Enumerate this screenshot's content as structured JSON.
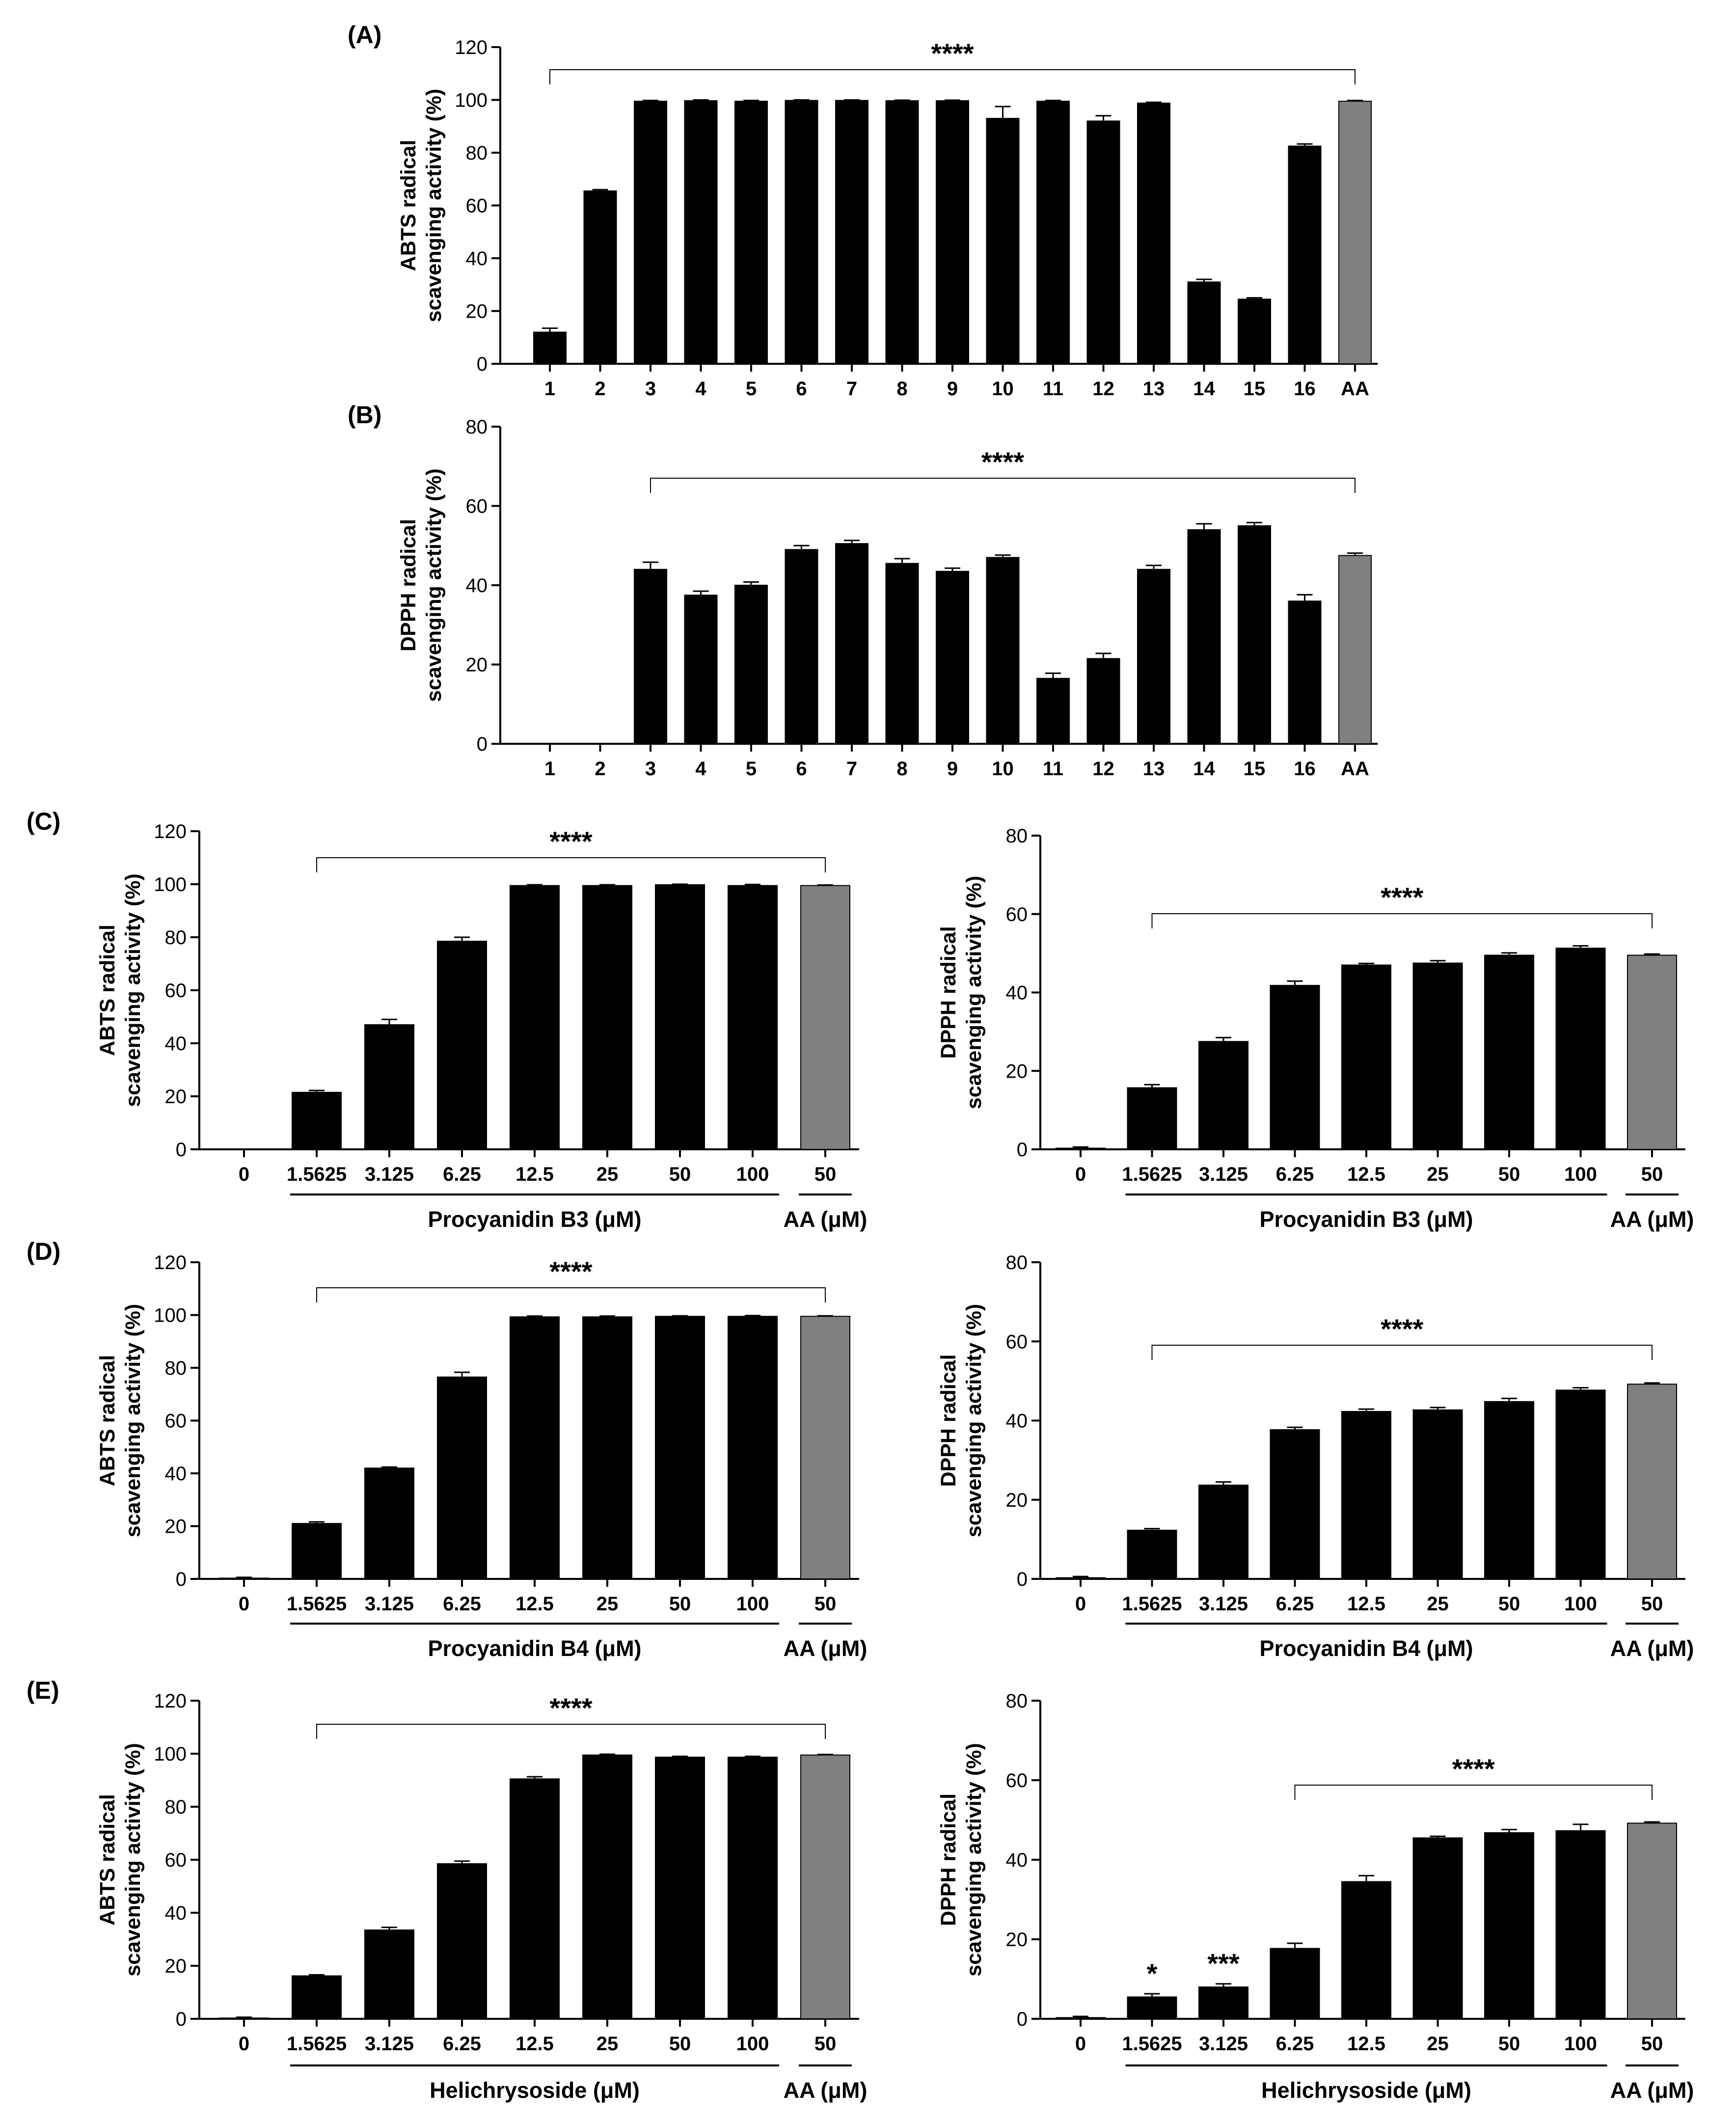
{
  "chart_data": [
    {
      "id": "A",
      "panel_label": "(A)",
      "type": "bar",
      "ylabel": [
        "ABTS radical",
        "scavenging activity (%)"
      ],
      "ylim": [
        0,
        120
      ],
      "yticks": [
        0,
        20,
        40,
        60,
        80,
        100,
        120
      ],
      "categories": [
        "1",
        "2",
        "3",
        "4",
        "5",
        "6",
        "7",
        "8",
        "9",
        "10",
        "11",
        "12",
        "13",
        "14",
        "15",
        "16",
        "AA"
      ],
      "values": [
        12,
        65.5,
        99.5,
        99.7,
        99.5,
        99.8,
        99.8,
        99.7,
        99.7,
        93,
        99.5,
        92,
        98.8,
        31,
        24.5,
        82.5,
        99.5
      ],
      "errors": [
        1.5,
        0.5,
        0.3,
        0.3,
        0.3,
        0.2,
        0.2,
        0.2,
        0.2,
        4.5,
        0.3,
        2.0,
        0.3,
        1.0,
        0.5,
        0.8,
        0.3
      ],
      "colors": [
        "#000000",
        "#000000",
        "#000000",
        "#000000",
        "#000000",
        "#000000",
        "#000000",
        "#000000",
        "#000000",
        "#000000",
        "#000000",
        "#000000",
        "#000000",
        "#000000",
        "#000000",
        "#000000",
        "#808080"
      ],
      "significance": [
        {
          "label": "****",
          "from": 0,
          "to": 16
        }
      ]
    },
    {
      "id": "B",
      "panel_label": "(B)",
      "type": "bar",
      "ylabel": [
        "DPPH radical",
        "scavenging activity (%)"
      ],
      "ylim": [
        0,
        80
      ],
      "yticks": [
        0,
        20,
        40,
        60,
        80
      ],
      "categories": [
        "1",
        "2",
        "3",
        "4",
        "5",
        "6",
        "7",
        "8",
        "9",
        "10",
        "11",
        "12",
        "13",
        "14",
        "15",
        "16",
        "AA"
      ],
      "values": [
        0,
        0,
        44,
        37.5,
        40,
        49,
        50.5,
        45.5,
        43.5,
        47,
        16.5,
        21.5,
        44,
        54,
        55,
        36,
        47.5
      ],
      "errors": [
        0,
        0,
        1.8,
        1.0,
        0.8,
        1.0,
        0.8,
        1.2,
        0.8,
        0.6,
        1.3,
        1.3,
        1.0,
        1.5,
        0.8,
        1.6,
        0.6
      ],
      "colors": [
        "#000000",
        "#000000",
        "#000000",
        "#000000",
        "#000000",
        "#000000",
        "#000000",
        "#000000",
        "#000000",
        "#000000",
        "#000000",
        "#000000",
        "#000000",
        "#000000",
        "#000000",
        "#000000",
        "#808080"
      ],
      "significance": [
        {
          "label": "****",
          "from": 2,
          "to": 16
        }
      ]
    },
    {
      "id": "C1",
      "panel_label": "(C)",
      "type": "bar",
      "ylabel": [
        "ABTS radical",
        "scavenging activity (%)"
      ],
      "ylim": [
        0,
        120
      ],
      "yticks": [
        0,
        20,
        40,
        60,
        80,
        100,
        120
      ],
      "categories": [
        "0",
        "1.5625",
        "3.125",
        "6.25",
        "12.5",
        "25",
        "50",
        "100",
        "50"
      ],
      "values": [
        0,
        21.5,
        47,
        78.5,
        99.5,
        99.5,
        99.8,
        99.5,
        99.5
      ],
      "errors": [
        0,
        0.7,
        2.0,
        1.5,
        0.3,
        0.3,
        0.2,
        0.4,
        0.2
      ],
      "colors": [
        "#000000",
        "#000000",
        "#000000",
        "#000000",
        "#000000",
        "#000000",
        "#000000",
        "#000000",
        "#808080"
      ],
      "significance": [
        {
          "label": "****",
          "from": 1,
          "to": 8
        }
      ],
      "groups": [
        {
          "label": "Procyanidin B3 (μM)",
          "from": 1,
          "to": 7
        },
        {
          "label": "AA (μM)",
          "from": 8,
          "to": 8
        }
      ]
    },
    {
      "id": "C2",
      "panel_label": "",
      "type": "bar",
      "ylabel": [
        "DPPH radical",
        "scavenging activity (%)"
      ],
      "ylim": [
        0,
        80
      ],
      "yticks": [
        0,
        20,
        40,
        60,
        80
      ],
      "categories": [
        "0",
        "1.5625",
        "3.125",
        "6.25",
        "12.5",
        "25",
        "50",
        "100",
        "50"
      ],
      "values": [
        0.3,
        15.7,
        27.5,
        41.8,
        47.0,
        47.5,
        49.5,
        51.3,
        49.5
      ],
      "errors": [
        0.3,
        0.8,
        1.0,
        1.1,
        0.4,
        0.6,
        0.6,
        0.6,
        0.3
      ],
      "colors": [
        "#000000",
        "#000000",
        "#000000",
        "#000000",
        "#000000",
        "#000000",
        "#000000",
        "#000000",
        "#808080"
      ],
      "significance": [
        {
          "label": "****",
          "from": 1,
          "to": 8
        }
      ],
      "groups": [
        {
          "label": "Procyanidin B3 (μM)",
          "from": 1,
          "to": 7
        },
        {
          "label": "AA (μM)",
          "from": 8,
          "to": 8
        }
      ]
    },
    {
      "id": "D1",
      "panel_label": "(D)",
      "type": "bar",
      "ylabel": [
        "ABTS radical",
        "scavenging activity (%)"
      ],
      "ylim": [
        0,
        120
      ],
      "yticks": [
        0,
        20,
        40,
        60,
        80,
        100,
        120
      ],
      "categories": [
        "0",
        "1.5625",
        "3.125",
        "6.25",
        "12.5",
        "25",
        "50",
        "100",
        "50"
      ],
      "values": [
        0.3,
        21,
        42,
        76.5,
        99.3,
        99.3,
        99.5,
        99.5,
        99.5
      ],
      "errors": [
        0.3,
        0.6,
        0.4,
        1.8,
        0.3,
        0.3,
        0.2,
        0.3,
        0.2
      ],
      "colors": [
        "#000000",
        "#000000",
        "#000000",
        "#000000",
        "#000000",
        "#000000",
        "#000000",
        "#000000",
        "#808080"
      ],
      "significance": [
        {
          "label": "****",
          "from": 1,
          "to": 8
        }
      ],
      "groups": [
        {
          "label": "Procyanidin B4 (μM)",
          "from": 1,
          "to": 7
        },
        {
          "label": "AA (μM)",
          "from": 8,
          "to": 8
        }
      ]
    },
    {
      "id": "D2",
      "panel_label": "",
      "type": "bar",
      "ylabel": [
        "DPPH radical",
        "scavenging activity (%)"
      ],
      "ylim": [
        0,
        80
      ],
      "yticks": [
        0,
        20,
        40,
        60,
        80
      ],
      "categories": [
        "0",
        "1.5625",
        "3.125",
        "6.25",
        "12.5",
        "25",
        "50",
        "100",
        "50"
      ],
      "values": [
        0.3,
        12.3,
        23.7,
        37.7,
        42.3,
        42.7,
        44.8,
        47.7,
        49.2
      ],
      "errors": [
        0.3,
        0.4,
        0.8,
        0.6,
        0.6,
        0.6,
        0.8,
        0.6,
        0.3
      ],
      "colors": [
        "#000000",
        "#000000",
        "#000000",
        "#000000",
        "#000000",
        "#000000",
        "#000000",
        "#000000",
        "#808080"
      ],
      "significance": [
        {
          "label": "****",
          "from": 1,
          "to": 8
        }
      ],
      "groups": [
        {
          "label": "Procyanidin B4 (μM)",
          "from": 1,
          "to": 7
        },
        {
          "label": "AA (μM)",
          "from": 8,
          "to": 8
        }
      ]
    },
    {
      "id": "E1",
      "panel_label": "(E)",
      "type": "bar",
      "ylabel": [
        "ABTS radical",
        "scavenging activity (%)"
      ],
      "ylim": [
        0,
        120
      ],
      "yticks": [
        0,
        20,
        40,
        60,
        80,
        100,
        120
      ],
      "categories": [
        "0",
        "1.5625",
        "3.125",
        "6.25",
        "12.5",
        "25",
        "50",
        "100",
        "50"
      ],
      "values": [
        0.3,
        16.2,
        33.5,
        58.5,
        90.5,
        99.5,
        98.7,
        98.7,
        99.5
      ],
      "errors": [
        0.3,
        0.4,
        1.0,
        1.0,
        0.8,
        0.3,
        0.3,
        0.3,
        0.2
      ],
      "colors": [
        "#000000",
        "#000000",
        "#000000",
        "#000000",
        "#000000",
        "#000000",
        "#000000",
        "#000000",
        "#808080"
      ],
      "significance": [
        {
          "label": "****",
          "from": 1,
          "to": 8
        }
      ],
      "groups": [
        {
          "label": "Helichrysoside (μM)",
          "from": 1,
          "to": 7
        },
        {
          "label": "AA (μM)",
          "from": 8,
          "to": 8
        }
      ]
    },
    {
      "id": "E2",
      "panel_label": "",
      "type": "bar",
      "ylabel": [
        "DPPH radical",
        "scavenging activity (%)"
      ],
      "ylim": [
        0,
        80
      ],
      "yticks": [
        0,
        20,
        40,
        60,
        80
      ],
      "categories": [
        "0",
        "1.5625",
        "3.125",
        "6.25",
        "12.5",
        "25",
        "50",
        "100",
        "50"
      ],
      "values": [
        0.3,
        5.5,
        8.0,
        17.7,
        34.5,
        45.5,
        46.8,
        47.3,
        49.2
      ],
      "errors": [
        0.3,
        0.8,
        0.8,
        1.3,
        1.5,
        0.4,
        0.8,
        1.6,
        0.3
      ],
      "colors": [
        "#000000",
        "#000000",
        "#000000",
        "#000000",
        "#000000",
        "#000000",
        "#000000",
        "#000000",
        "#808080"
      ],
      "significance": [
        {
          "label": "****",
          "from": 3,
          "to": 8
        },
        {
          "label": "*",
          "from": 1,
          "to": 1
        },
        {
          "label": "***",
          "from": 2,
          "to": 2
        }
      ],
      "groups": [
        {
          "label": "Helichrysoside (μM)",
          "from": 1,
          "to": 7
        },
        {
          "label": "AA (μM)",
          "from": 8,
          "to": 8
        }
      ]
    }
  ]
}
